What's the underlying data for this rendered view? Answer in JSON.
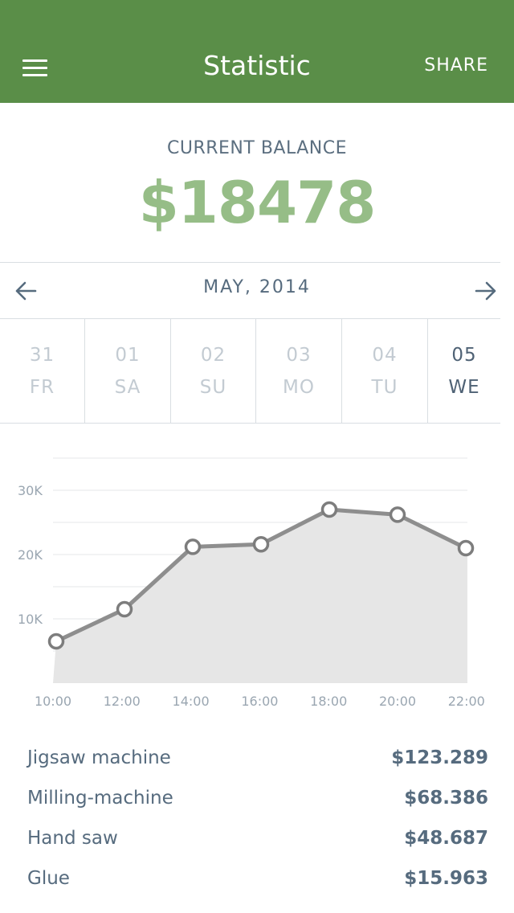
{
  "header": {
    "title": "Statistic",
    "share_label": "SHARE"
  },
  "balance": {
    "label": "CURRENT BALANCE",
    "value": "$18478"
  },
  "month_nav": {
    "label": "MAY, 2014"
  },
  "days": [
    {
      "num": "31",
      "weekday": "FR",
      "active": false
    },
    {
      "num": "01",
      "weekday": "SA",
      "active": false
    },
    {
      "num": "02",
      "weekday": "SU",
      "active": false
    },
    {
      "num": "03",
      "weekday": "MO",
      "active": false
    },
    {
      "num": "04",
      "weekday": "TU",
      "active": false
    },
    {
      "num": "05",
      "weekday": "WE",
      "active": true
    }
  ],
  "chart_data": {
    "type": "area",
    "categories": [
      "10:00",
      "12:00",
      "14:00",
      "16:00",
      "18:00",
      "20:00",
      "22:00"
    ],
    "values": [
      6500,
      11500,
      21200,
      21600,
      27000,
      26200,
      21000
    ],
    "y_ticks": [
      "10K",
      "20K",
      "30K"
    ],
    "ylim": [
      0,
      35000
    ],
    "grid": true,
    "line_color": "#8e8e8e",
    "fill_color": "#e6e6e6"
  },
  "items": [
    {
      "name": "Jigsaw machine",
      "amount": "$123.289"
    },
    {
      "name": "Milling-machine",
      "amount": "$68.386"
    },
    {
      "name": "Hand saw",
      "amount": "$48.687"
    },
    {
      "name": "Glue",
      "amount": "$15.963"
    }
  ]
}
